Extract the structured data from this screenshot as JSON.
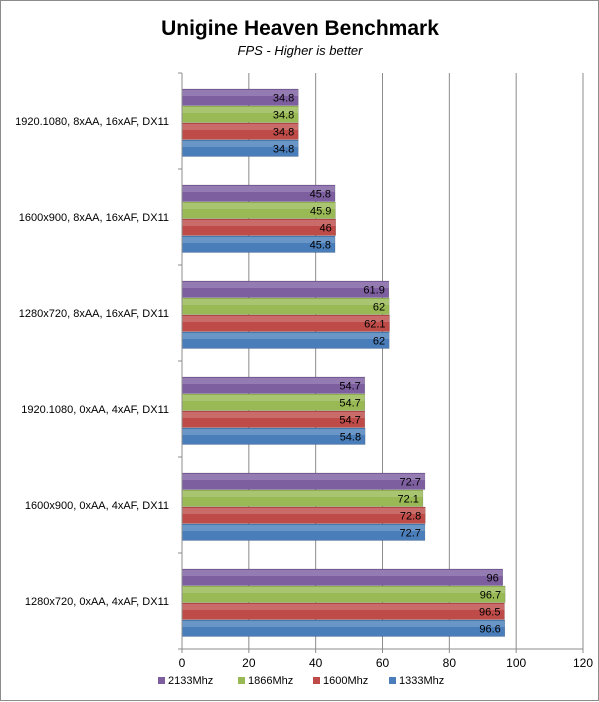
{
  "chart_data": {
    "type": "bar",
    "orientation": "horizontal",
    "title": "Unigine Heaven Benchmark",
    "subtitle": "FPS - Higher is better",
    "categories": [
      "1920.1080, 8xAA, 16xAF, DX11",
      "1600x900, 8xAA, 16xAF, DX11",
      "1280x720, 8xAA, 16xAF, DX11",
      "1920.1080, 0xAA, 4xAF, DX11",
      "1600x900, 0xAA, 4xAF, DX11",
      "1280x720, 0xAA, 4xAF, DX11"
    ],
    "series": [
      {
        "name": "2133Mhz",
        "color": "#7D5FA0",
        "values": [
          34.8,
          45.8,
          61.9,
          54.7,
          72.7,
          96
        ]
      },
      {
        "name": "1866Mhz",
        "color": "#98B954",
        "values": [
          34.8,
          45.9,
          62,
          54.7,
          72.1,
          96.7
        ]
      },
      {
        "name": "1600Mhz",
        "color": "#BE4B48",
        "values": [
          34.8,
          46,
          62.1,
          54.7,
          72.8,
          96.5
        ]
      },
      {
        "name": "1333Mhz",
        "color": "#4A7EBB",
        "values": [
          34.8,
          45.8,
          62,
          54.8,
          72.7,
          96.6
        ]
      }
    ],
    "xlim": [
      0,
      120
    ],
    "xticks": [
      0,
      20,
      40,
      60,
      80,
      100,
      120
    ],
    "grid": true,
    "legend_position": "bottom",
    "data_labels": true
  }
}
